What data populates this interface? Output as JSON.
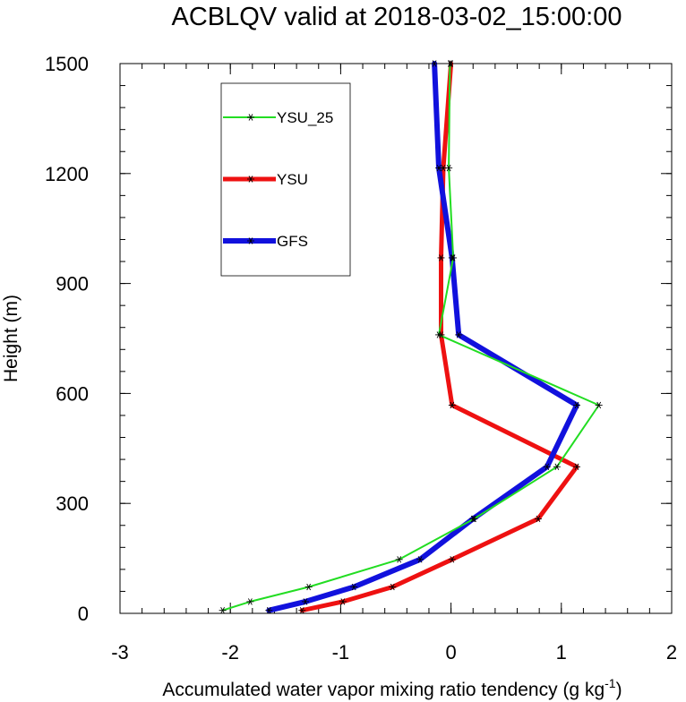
{
  "chart_data": {
    "type": "line",
    "title": "ACBLQV valid at 2018-03-02_15:00:00",
    "xlabel": "Accumulated water vapor mixing ratio tendency (g kg",
    "xlabel_sup": "-1",
    "xlabel_tail": ")",
    "ylabel": "Height (m)",
    "xlim": [
      -3,
      2
    ],
    "ylim": [
      0,
      1500
    ],
    "xticks": [
      -3,
      -2,
      -1,
      0,
      1,
      2
    ],
    "yticks": [
      0,
      300,
      600,
      900,
      1200,
      1500
    ],
    "xtick_labels": [
      "-3",
      "-2",
      "-1",
      "0",
      "1",
      "2"
    ],
    "ytick_labels": [
      "0",
      "300",
      "600",
      "900",
      "1200",
      "1500"
    ],
    "grid": false,
    "legend_position": "upper-left",
    "series": [
      {
        "name": "YSU_25",
        "color": "#22dd22",
        "width": 2,
        "marker": "asterisk",
        "x": [
          -2.07,
          -1.82,
          -1.29,
          -0.47,
          0.21,
          0.96,
          1.34,
          -0.11,
          0.02,
          -0.02,
          -0.01
        ],
        "y": [
          8,
          32,
          72,
          147,
          258,
          400,
          568,
          760,
          970,
          1215,
          1500
        ]
      },
      {
        "name": "YSU",
        "color": "#ee1111",
        "width": 5,
        "marker": "asterisk",
        "x": [
          -1.35,
          -0.98,
          -0.53,
          0.01,
          0.79,
          1.14,
          0.01,
          -0.09,
          -0.09,
          -0.07,
          0.0
        ],
        "y": [
          8,
          32,
          72,
          147,
          258,
          400,
          568,
          760,
          970,
          1215,
          1500
        ]
      },
      {
        "name": "GFS",
        "color": "#1111dd",
        "width": 6,
        "marker": "asterisk",
        "x": [
          -1.65,
          -1.32,
          -0.88,
          -0.28,
          0.2,
          0.87,
          1.14,
          0.07,
          0.01,
          -0.11,
          -0.15
        ],
        "y": [
          8,
          32,
          72,
          147,
          258,
          400,
          568,
          760,
          970,
          1215,
          1500
        ]
      }
    ]
  }
}
